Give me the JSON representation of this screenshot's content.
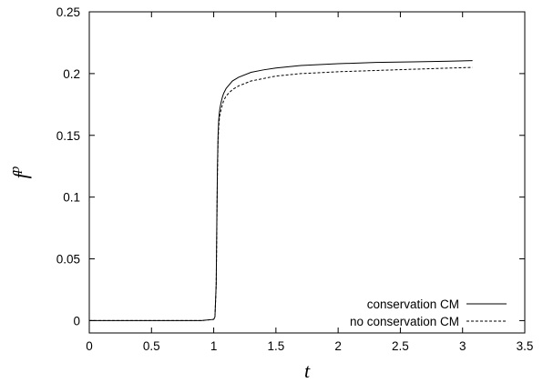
{
  "chart_data": {
    "type": "line",
    "xlabel": "t",
    "ylabel_base": "f",
    "ylabel_sup": "p",
    "xlim": [
      0,
      3.5
    ],
    "ylim": [
      -0.01,
      0.25
    ],
    "xticks": [
      0,
      0.5,
      1,
      1.5,
      2,
      2.5,
      3,
      3.5
    ],
    "xtick_labels": [
      "0",
      "0.5",
      "1",
      "1.5",
      "2",
      "2.5",
      "3",
      "3.5"
    ],
    "yticks": [
      0,
      0.05,
      0.1,
      0.15,
      0.2,
      0.25
    ],
    "ytick_labels": [
      "0",
      "0.05",
      "0.1",
      "0.15",
      "0.2",
      "0.25"
    ],
    "grid": false,
    "legend_position": "bottom-right",
    "series": [
      {
        "name": "conservation CM",
        "style": "solid",
        "color": "#000000",
        "x": [
          0,
          0.5,
          0.9,
          1.0,
          1.01,
          1.02,
          1.025,
          1.03,
          1.035,
          1.04,
          1.045,
          1.05,
          1.06,
          1.07,
          1.08,
          1.1,
          1.15,
          1.2,
          1.3,
          1.4,
          1.5,
          1.7,
          2.0,
          2.3,
          2.6,
          2.9,
          3.08
        ],
        "y": [
          0,
          0,
          0,
          0.001,
          0.003,
          0.03,
          0.08,
          0.125,
          0.15,
          0.162,
          0.168,
          0.172,
          0.177,
          0.181,
          0.184,
          0.188,
          0.194,
          0.197,
          0.201,
          0.203,
          0.2045,
          0.2065,
          0.208,
          0.209,
          0.2095,
          0.21,
          0.2105
        ]
      },
      {
        "name": "no conservation CM",
        "style": "dashed",
        "color": "#000000",
        "x": [
          0,
          0.5,
          0.9,
          1.0,
          1.01,
          1.02,
          1.025,
          1.03,
          1.035,
          1.04,
          1.045,
          1.05,
          1.06,
          1.07,
          1.08,
          1.1,
          1.15,
          1.2,
          1.3,
          1.4,
          1.5,
          1.7,
          2.0,
          2.3,
          2.6,
          2.9,
          3.08
        ],
        "y": [
          0,
          0,
          0,
          0.001,
          0.003,
          0.028,
          0.075,
          0.12,
          0.145,
          0.157,
          0.163,
          0.167,
          0.171,
          0.175,
          0.178,
          0.182,
          0.187,
          0.19,
          0.194,
          0.196,
          0.198,
          0.2,
          0.2015,
          0.2025,
          0.2035,
          0.2045,
          0.205
        ]
      }
    ]
  }
}
